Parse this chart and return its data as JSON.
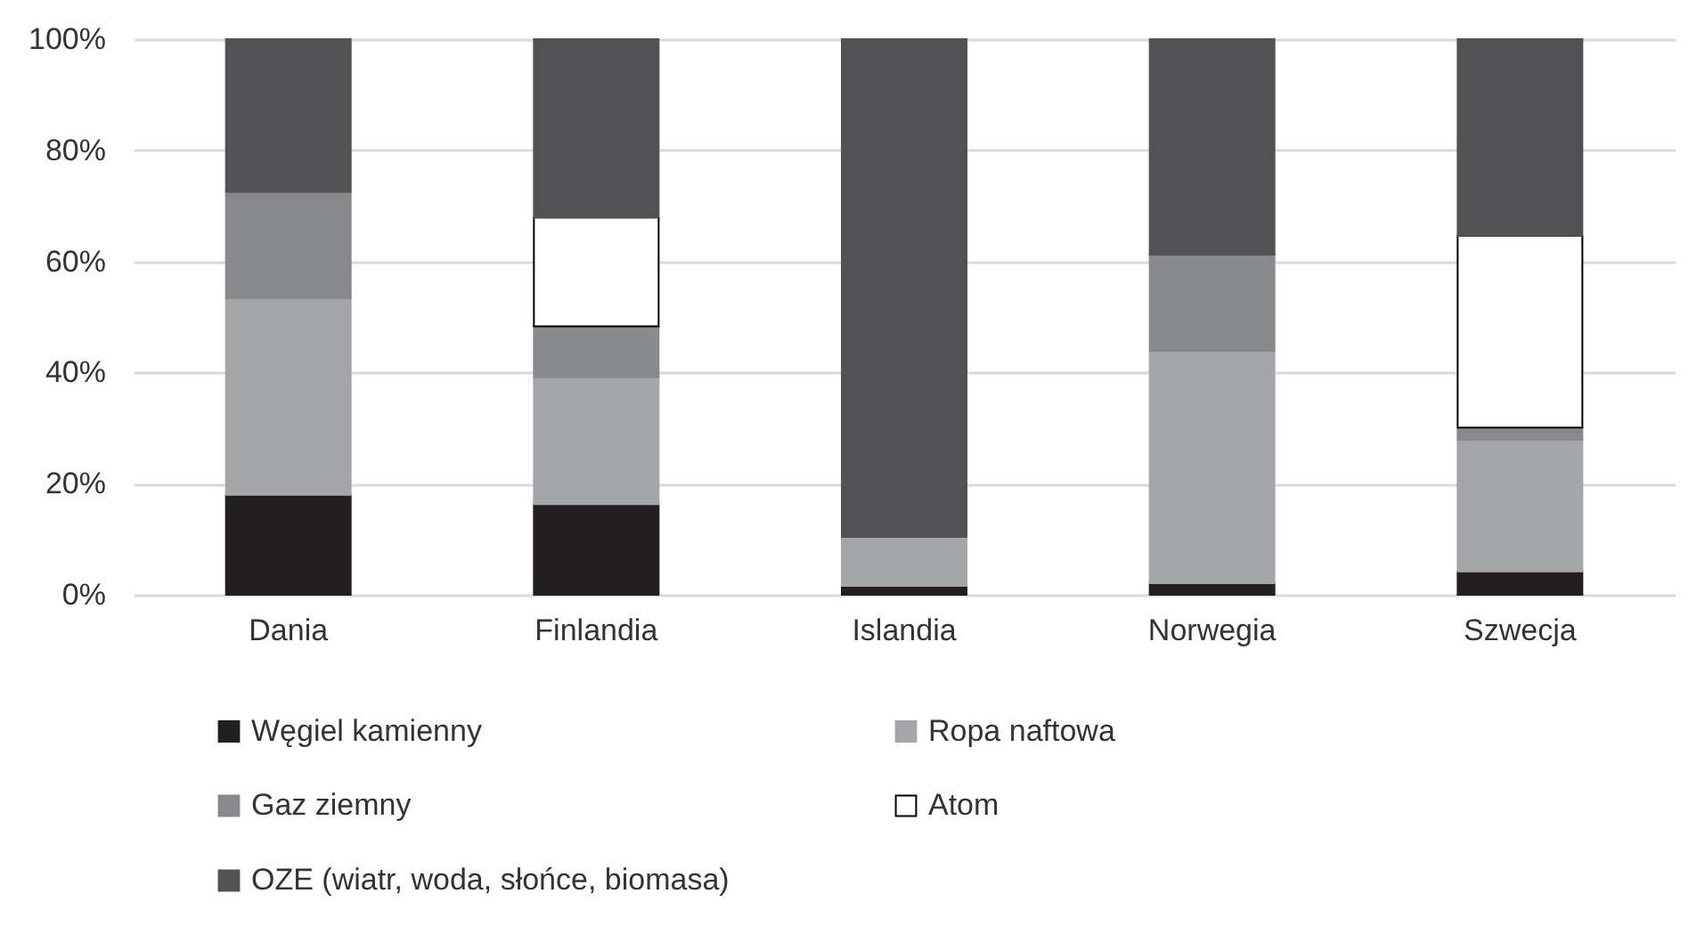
{
  "chart_data": {
    "type": "bar",
    "stacked": true,
    "categories": [
      "Dania",
      "Finlandia",
      "Islandia",
      "Norwegia",
      "Szwecja"
    ],
    "series": [
      {
        "name": "Węgiel kamienny",
        "color": "#231f20",
        "values": [
          18.0,
          16.3,
          1.6,
          2.1,
          4.2
        ]
      },
      {
        "name": "Ropa naftowa",
        "color": "#a5a6a9",
        "values": [
          35.4,
          22.9,
          8.8,
          41.8,
          23.7
        ]
      },
      {
        "name": "Gaz ziemny",
        "color": "#88898c",
        "values": [
          19.1,
          9.1,
          null,
          17.3,
          2.2
        ]
      },
      {
        "name": "Atom",
        "color": "#ffffff",
        "values": [
          null,
          19.6,
          null,
          null,
          34.5
        ]
      },
      {
        "name": "OZE (wiatr, woda, słońce, biomasa)",
        "color": "#525254",
        "values": [
          27.5,
          32.1,
          89.6,
          38.8,
          35.4
        ]
      }
    ],
    "ylim": [
      0,
      100
    ],
    "yticks": [
      {
        "value": 0,
        "label": "0%"
      },
      {
        "value": 20,
        "label": "20%"
      },
      {
        "value": 40,
        "label": "40%"
      },
      {
        "value": 60,
        "label": "60%"
      },
      {
        "value": 80,
        "label": "80%"
      },
      {
        "value": 100,
        "label": "100%"
      }
    ],
    "grid": "y",
    "legend": "bottom"
  }
}
